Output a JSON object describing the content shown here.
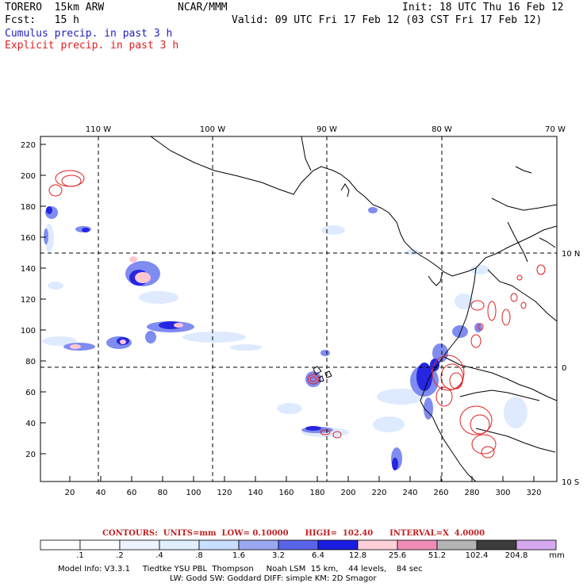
{
  "header": {
    "model": "TORERO  15km ARW",
    "org": "NCAR/MMM",
    "init": "Init: 18 UTC Thu 16 Feb 12",
    "fcst": "Fcst:   15 h",
    "valid": "Valid: 09 UTC Fri 17 Feb 12 (03 CST Fri 17 Feb 12)",
    "cumulus": "Cumulus precip. in past 3 h",
    "explicit": "Explicit precip. in past 3 h"
  },
  "axes": {
    "top_lon": [
      "110 W",
      "100 W",
      "90 W",
      "80 W",
      "70 W"
    ],
    "right_lat": [
      "10 N",
      "0",
      "10 S"
    ],
    "y_ticks": [
      "220",
      "200",
      "180",
      "160",
      "140",
      "120",
      "100",
      "80",
      "60",
      "40",
      "20"
    ],
    "x_ticks": [
      "20",
      "40",
      "60",
      "80",
      "100",
      "120",
      "140",
      "160",
      "180",
      "200",
      "220",
      "240",
      "260",
      "280",
      "300",
      "320"
    ]
  },
  "legend": {
    "contours": "CONTOURS:  UNITS=mm  LOW= 0.10000      HIGH=  102.40      INTERVAL=X  4.0000",
    "labels": [
      ".1",
      ".2",
      ".4",
      ".8",
      "1.6",
      "3.2",
      "6.4",
      "12.8",
      "25.6",
      "51.2",
      "102.4",
      "204.8"
    ],
    "unit": "mm",
    "colors": [
      "#ffffff",
      "#ffffff",
      "#eef4ff",
      "#e0f0ff",
      "#c8deff",
      "#9aa8f0",
      "#5a64e8",
      "#1c1ce0",
      "#ffd0d8",
      "#f08cb8",
      "#b4b4b4",
      "#3c3c3c",
      "#d6a8f0"
    ]
  },
  "footer": {
    "line1": "Model Info: V3.3.1     Tiedtke YSU PBL  Thompson     Noah LSM  15 km,    44 levels,    84 sec",
    "line2": "LW: Godd SW: Goddard DIFF: simple KM: 2D Smagor"
  }
}
